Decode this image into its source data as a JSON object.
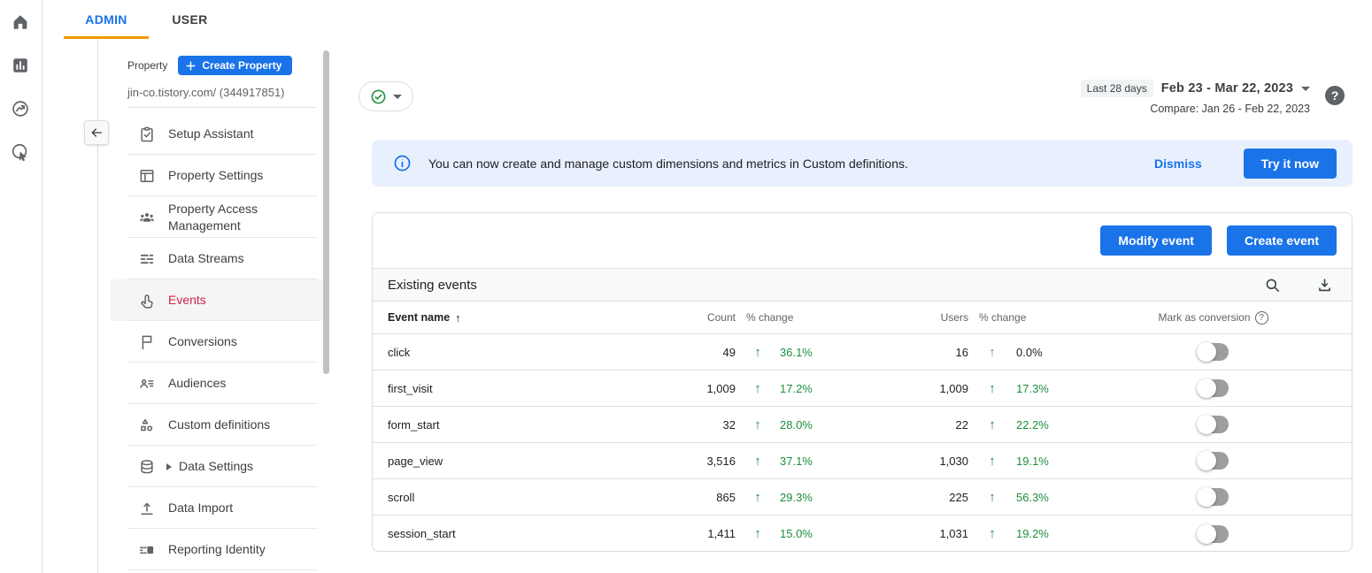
{
  "colors": {
    "accent_blue": "#1a73e8",
    "positive_green": "#1e8e3e",
    "selected_red": "#d2254c",
    "banner_bg": "#e8f0fe",
    "tab_underline_orange": "#f29900"
  },
  "rail": {
    "icons": [
      {
        "name": "home-icon"
      },
      {
        "name": "reports-icon"
      },
      {
        "name": "explore-icon"
      },
      {
        "name": "advertising-icon"
      }
    ]
  },
  "tabs": {
    "admin": "ADMIN",
    "user": "USER"
  },
  "sidebar": {
    "property_label": "Property",
    "create_property_button": "Create Property",
    "property_value": "jin-co.tistory.com/ (344917851)",
    "items": [
      {
        "id": "setup-assistant",
        "label": "Setup Assistant",
        "icon": "clipboard-check-icon"
      },
      {
        "id": "property-settings",
        "label": "Property Settings",
        "icon": "window-icon"
      },
      {
        "id": "property-access-management",
        "label": "Property Access Management",
        "icon": "people-icon"
      },
      {
        "id": "data-streams",
        "label": "Data Streams",
        "icon": "data-streams-icon"
      },
      {
        "id": "events",
        "label": "Events",
        "icon": "touch-icon",
        "selected": true
      },
      {
        "id": "conversions",
        "label": "Conversions",
        "icon": "flag-icon"
      },
      {
        "id": "audiences",
        "label": "Audiences",
        "icon": "audiences-icon"
      },
      {
        "id": "custom-definitions",
        "label": "Custom definitions",
        "icon": "shapes-icon"
      },
      {
        "id": "data-settings",
        "label": "Data Settings",
        "icon": "database-icon",
        "expandable": true
      },
      {
        "id": "data-import",
        "label": "Data Import",
        "icon": "upload-icon"
      },
      {
        "id": "reporting-identity",
        "label": "Reporting Identity",
        "icon": "identity-icon"
      }
    ]
  },
  "header": {
    "status_chip_icon": "check-circle-icon",
    "date_badge": "Last 28 days",
    "date_range": "Feb 23 - Mar 22, 2023",
    "compare": "Compare: Jan 26 - Feb 22, 2023",
    "help_icon": "help-icon",
    "help_glyph": "?"
  },
  "banner": {
    "icon": "info-icon",
    "message": "You can now create and manage custom dimensions and metrics in Custom definitions.",
    "dismiss_label": "Dismiss",
    "try_label": "Try it now"
  },
  "events_card": {
    "modify_event_label": "Modify event",
    "create_event_label": "Create event",
    "title": "Existing events",
    "search_icon": "search-icon",
    "download_icon": "download-icon",
    "columns": {
      "event_name": "Event name",
      "count": "Count",
      "count_change": "% change",
      "users": "Users",
      "users_change": "% change",
      "mark_as_conversion": "Mark as conversion"
    },
    "rows": [
      {
        "name": "click",
        "count": "49",
        "count_change": "36.1%",
        "users": "16",
        "users_change": "0.0%",
        "users_change_neutral": true,
        "conversion_on": false
      },
      {
        "name": "first_visit",
        "count": "1,009",
        "count_change": "17.2%",
        "users": "1,009",
        "users_change": "17.3%",
        "conversion_on": false
      },
      {
        "name": "form_start",
        "count": "32",
        "count_change": "28.0%",
        "users": "22",
        "users_change": "22.2%",
        "conversion_on": false
      },
      {
        "name": "page_view",
        "count": "3,516",
        "count_change": "37.1%",
        "users": "1,030",
        "users_change": "19.1%",
        "conversion_on": false
      },
      {
        "name": "scroll",
        "count": "865",
        "count_change": "29.3%",
        "users": "225",
        "users_change": "56.3%",
        "conversion_on": false
      },
      {
        "name": "session_start",
        "count": "1,411",
        "count_change": "15.0%",
        "users": "1,031",
        "users_change": "19.2%",
        "conversion_on": false
      }
    ]
  }
}
